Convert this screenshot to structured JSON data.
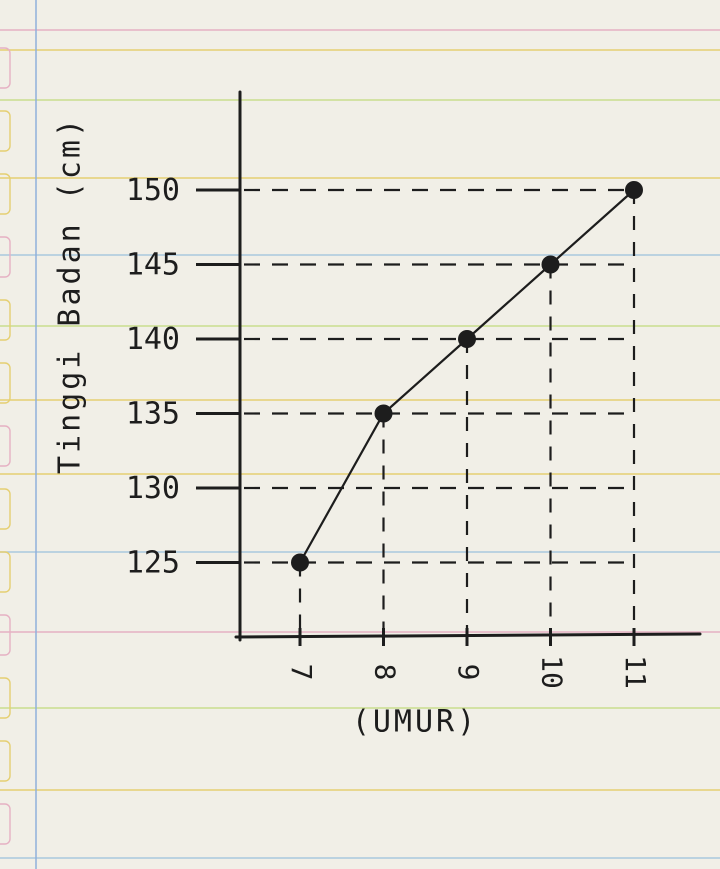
{
  "chart_data": {
    "type": "line",
    "title": "",
    "xlabel": "(UMUR)",
    "ylabel": "Tinggi Badan (cm)",
    "x": [
      7,
      8,
      9,
      10,
      11
    ],
    "y": [
      125,
      135,
      140,
      145,
      150
    ],
    "x_ticks": [
      "7",
      "8",
      "9",
      "10",
      "11"
    ],
    "y_ticks": [
      "125",
      "130",
      "135",
      "140",
      "145",
      "150"
    ],
    "ylim": [
      120,
      150
    ],
    "grid": "dashed guide lines to each point",
    "colors": {
      "ink": "#1d1d1d",
      "paper": "#f1efe7",
      "rule_yellow": "#e5cf72",
      "rule_green": "#c9de8e",
      "rule_blue": "#a9c8de",
      "rule_pink": "#e6b1c3",
      "margin_blue": "#8fb0dc"
    }
  }
}
